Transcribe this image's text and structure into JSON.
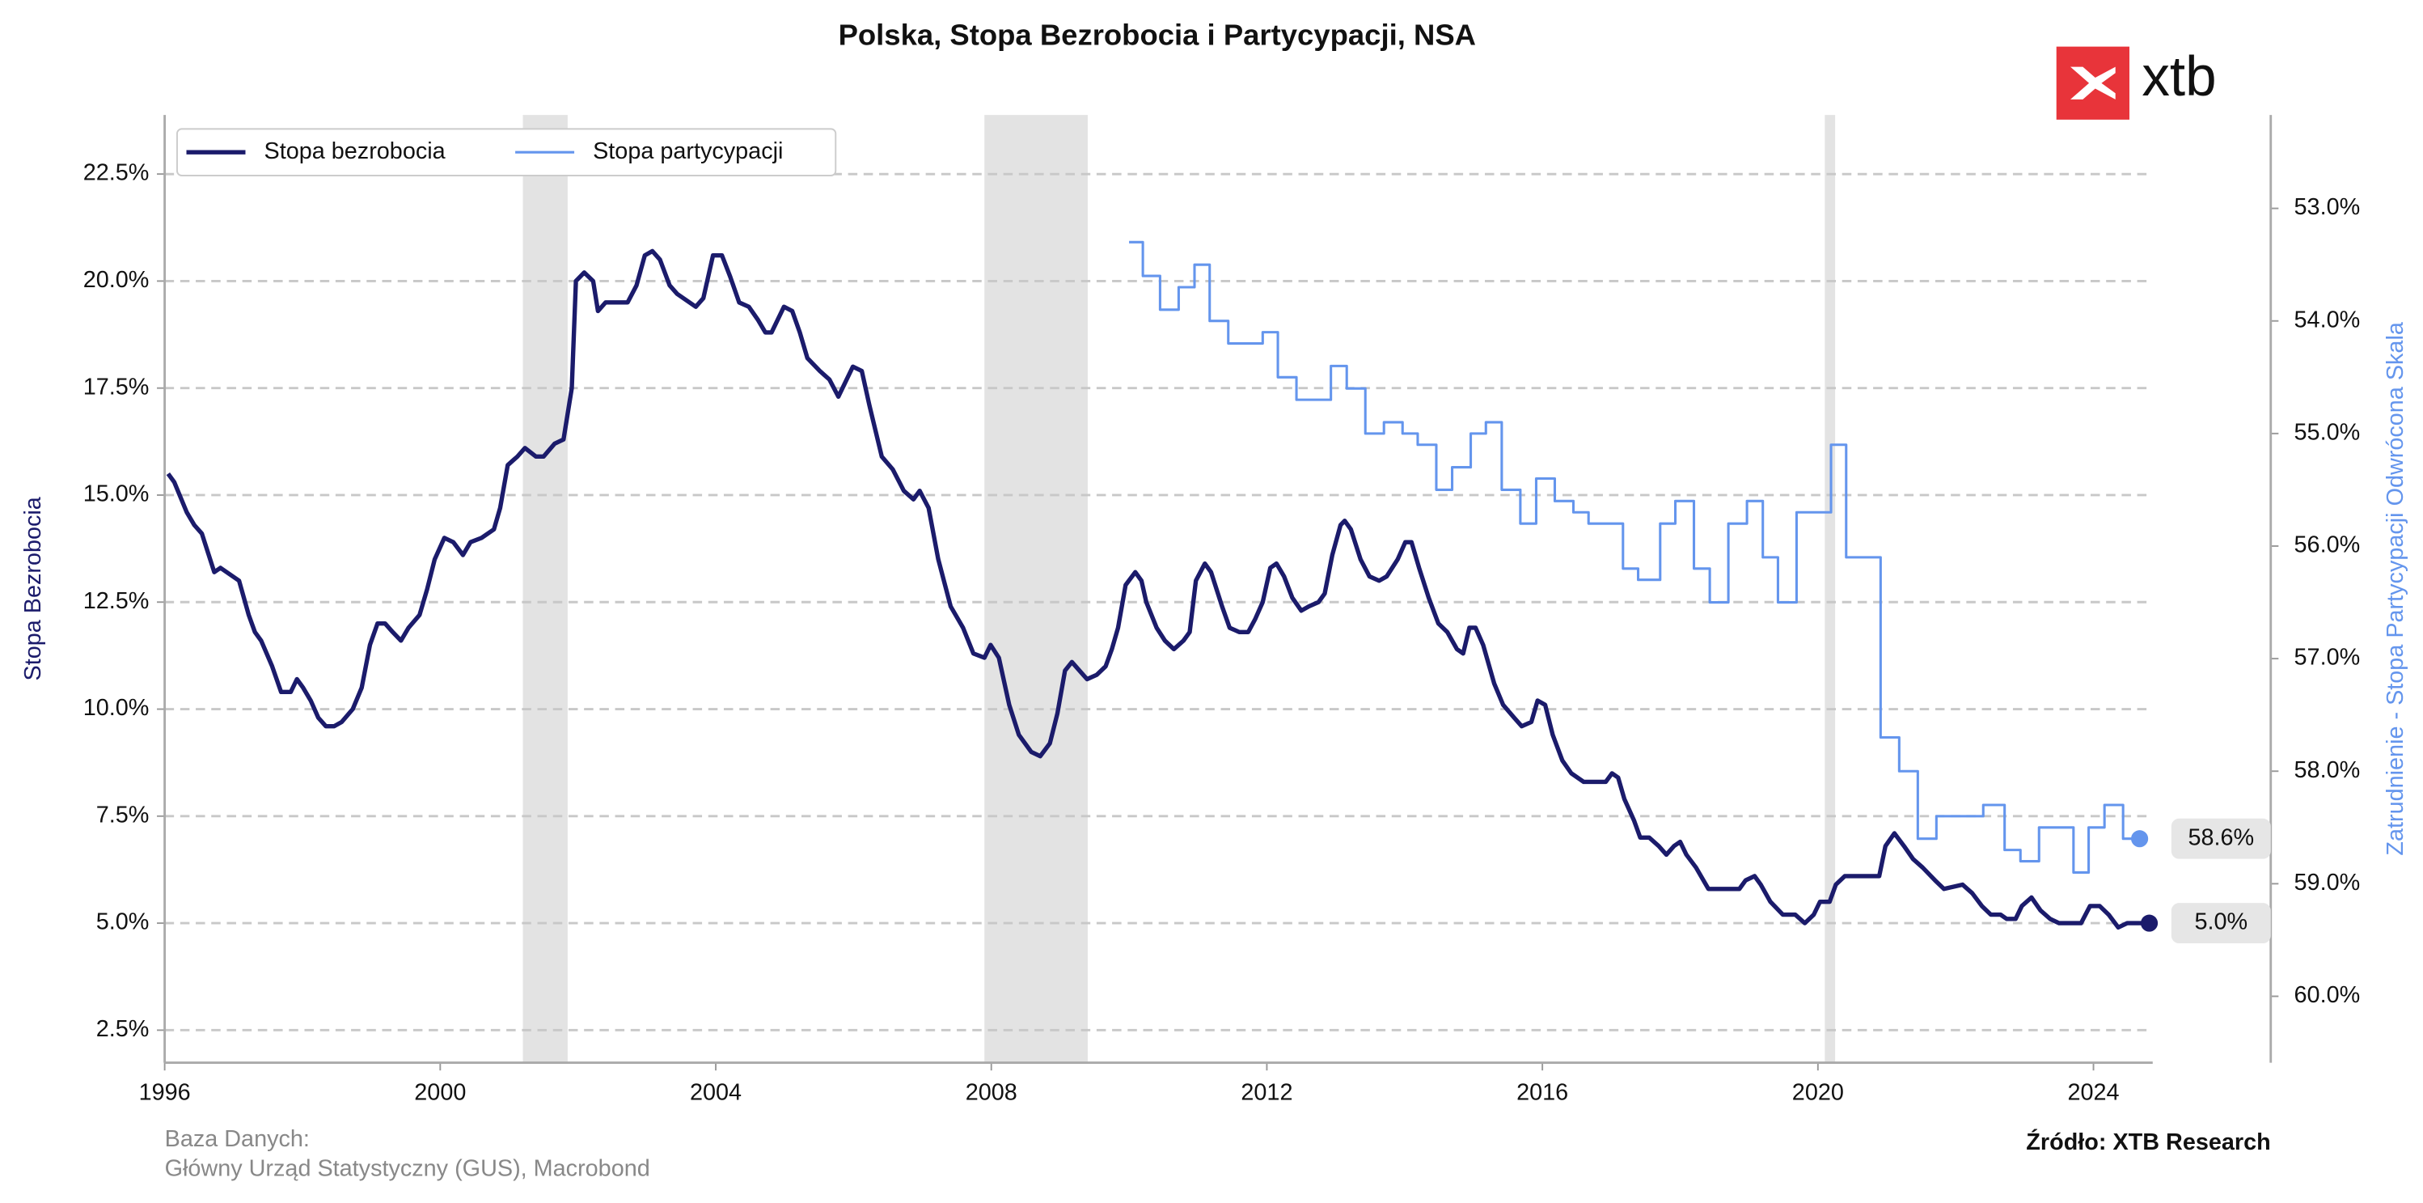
{
  "chart_data": {
    "type": "line",
    "title": "Polska, Stopa Bezrobocia i Partycypacji, NSA",
    "y_label": "Stopa Bezrobocia",
    "y2_label": "Zatrudnienie - Stopa Partycypacji Odwrócona Skala",
    "source_title": "Baza Danych:",
    "source_text": "Główny Urząd Statystyczny (GUS), Macrobond",
    "credit": "Źródło: XTB Research",
    "logo": "xtb",
    "legend": "upper left",
    "grid": true,
    "y2_inverted": true,
    "xlim": [
      1996,
      2024.86
    ],
    "xticks": [
      1996,
      2000,
      2004,
      2008,
      2012,
      2016,
      2020,
      2024
    ],
    "ylim": [
      1.74,
      23.88
    ],
    "yticks": [
      {
        "value": 2.5,
        "label": "2.5%"
      },
      {
        "value": 5,
        "label": "5.0%"
      },
      {
        "value": 7.5,
        "label": "7.5%"
      },
      {
        "value": 10,
        "label": "10.0%"
      },
      {
        "value": 12.5,
        "label": "12.5%"
      },
      {
        "value": 15,
        "label": "15.0%"
      },
      {
        "value": 17.5,
        "label": "17.5%"
      },
      {
        "value": 20,
        "label": "20.0%"
      },
      {
        "value": 22.5,
        "label": "22.5%"
      }
    ],
    "y2lim": [
      52.17,
      60.59
    ],
    "y2ticks": [
      {
        "value": 53,
        "label": "53.0%"
      },
      {
        "value": 54,
        "label": "54.0%"
      },
      {
        "value": 55,
        "label": "55.0%"
      },
      {
        "value": 56,
        "label": "56.0%"
      },
      {
        "value": 57,
        "label": "57.0%"
      },
      {
        "value": 58,
        "label": "58.0%"
      },
      {
        "value": 59,
        "label": "59.0%"
      },
      {
        "value": 60,
        "label": "60.0%"
      }
    ],
    "shaded_periods": [
      [
        2001.2,
        2001.85
      ],
      [
        2007.9,
        2009.4
      ],
      [
        2020.1,
        2020.25
      ]
    ],
    "series": [
      {
        "name": "Stopa bezrobocia",
        "color": "#1b1b6b",
        "end_label": "5.0%",
        "x": [
          1996.05,
          1996.14,
          1996.32,
          1996.43,
          1996.54,
          1996.72,
          1996.81,
          1997.08,
          1997.22,
          1997.31,
          1997.4,
          1997.56,
          1997.69,
          1997.83,
          1997.92,
          1998.01,
          1998.12,
          1998.23,
          1998.34,
          1998.46,
          1998.57,
          1998.73,
          1998.86,
          1998.98,
          1999.09,
          1999.2,
          1999.31,
          1999.43,
          1999.54,
          1999.7,
          1999.81,
          1999.92,
          2000.06,
          2000.19,
          2000.33,
          2000.44,
          2000.6,
          2000.78,
          2000.87,
          2000.98,
          2001.12,
          2001.23,
          2001.39,
          2001.5,
          2001.66,
          2001.79,
          2001.91,
          2001.97,
          2002.09,
          2002.22,
          2002.29,
          2002.4,
          2002.56,
          2002.72,
          2002.85,
          2002.97,
          2003.08,
          2003.19,
          2003.33,
          2003.44,
          2003.71,
          2003.82,
          2003.96,
          2004.09,
          2004.21,
          2004.34,
          2004.48,
          2004.61,
          2004.72,
          2004.81,
          2004.99,
          2005.11,
          2005.22,
          2005.33,
          2005.51,
          2005.65,
          2005.78,
          2005.87,
          2005.99,
          2006.12,
          2006.23,
          2006.41,
          2006.57,
          2006.73,
          2006.87,
          2006.96,
          2007.09,
          2007.23,
          2007.41,
          2007.59,
          2007.74,
          2007.9,
          2007.99,
          2008.11,
          2008.26,
          2008.4,
          2008.58,
          2008.71,
          2008.85,
          2008.96,
          2009.07,
          2009.17,
          2009.28,
          2009.39,
          2009.53,
          2009.66,
          2009.75,
          2009.84,
          2009.95,
          2010.09,
          2010.18,
          2010.25,
          2010.4,
          2010.52,
          2010.65,
          2010.79,
          2010.88,
          2010.97,
          2011.1,
          2011.19,
          2011.35,
          2011.46,
          2011.6,
          2011.73,
          2011.83,
          2011.94,
          2012.05,
          2012.14,
          2012.25,
          2012.37,
          2012.5,
          2012.61,
          2012.75,
          2012.84,
          2012.95,
          2013.07,
          2013.13,
          2013.22,
          2013.36,
          2013.49,
          2013.63,
          2013.74,
          2013.9,
          2014.01,
          2014.1,
          2014.21,
          2014.35,
          2014.49,
          2014.62,
          2014.76,
          2014.85,
          2014.94,
          2015.03,
          2015.14,
          2015.3,
          2015.43,
          2015.59,
          2015.7,
          2015.84,
          2015.93,
          2016.04,
          2016.15,
          2016.29,
          2016.42,
          2016.6,
          2016.92,
          2017.01,
          2017.1,
          2017.19,
          2017.33,
          2017.42,
          2017.55,
          2017.69,
          2017.8,
          2017.91,
          2018.0,
          2018.09,
          2018.23,
          2018.41,
          2018.59,
          2018.72,
          2018.86,
          2018.95,
          2019.08,
          2019.17,
          2019.31,
          2019.49,
          2019.67,
          2019.81,
          2019.94,
          2020.03,
          2020.17,
          2020.26,
          2020.39,
          2020.89,
          2020.98,
          2021.11,
          2021.25,
          2021.38,
          2021.52,
          2021.7,
          2021.83,
          2022.1,
          2022.24,
          2022.38,
          2022.51,
          2022.65,
          2022.74,
          2022.87,
          2022.96,
          2023.1,
          2023.23,
          2023.37,
          2023.5,
          2023.82,
          2023.95,
          2024.09,
          2024.22,
          2024.36,
          2024.49,
          2024.81
        ],
        "values": [
          15.5,
          15.3,
          14.6,
          14.3,
          14.1,
          13.2,
          13.3,
          13.0,
          12.2,
          11.8,
          11.6,
          11.0,
          10.4,
          10.4,
          10.7,
          10.5,
          10.2,
          9.8,
          9.6,
          9.6,
          9.7,
          10.0,
          10.5,
          11.5,
          12.0,
          12.0,
          11.8,
          11.6,
          11.9,
          12.2,
          12.8,
          13.5,
          14.0,
          13.9,
          13.6,
          13.9,
          14.0,
          14.2,
          14.7,
          15.7,
          15.9,
          16.1,
          15.9,
          15.9,
          16.2,
          16.3,
          17.5,
          20.0,
          20.2,
          20.0,
          19.3,
          19.5,
          19.5,
          19.5,
          19.9,
          20.6,
          20.7,
          20.5,
          19.9,
          19.7,
          19.4,
          19.6,
          20.6,
          20.6,
          20.1,
          19.5,
          19.4,
          19.1,
          18.8,
          18.8,
          19.4,
          19.3,
          18.8,
          18.2,
          17.9,
          17.7,
          17.3,
          17.6,
          18.0,
          17.9,
          17.1,
          15.9,
          15.6,
          15.1,
          14.9,
          15.1,
          14.7,
          13.5,
          12.4,
          11.9,
          11.3,
          11.2,
          11.5,
          11.2,
          10.1,
          9.4,
          9.0,
          8.9,
          9.2,
          9.9,
          10.9,
          11.1,
          10.9,
          10.7,
          10.8,
          11.0,
          11.4,
          11.9,
          12.9,
          13.2,
          13.0,
          12.5,
          11.9,
          11.6,
          11.4,
          11.6,
          11.8,
          13.0,
          13.4,
          13.2,
          12.4,
          11.9,
          11.8,
          11.8,
          12.1,
          12.5,
          13.3,
          13.4,
          13.1,
          12.6,
          12.3,
          12.4,
          12.5,
          12.7,
          13.6,
          14.3,
          14.4,
          14.2,
          13.5,
          13.1,
          13.0,
          13.1,
          13.5,
          13.9,
          13.9,
          13.3,
          12.6,
          12.0,
          11.8,
          11.4,
          11.3,
          11.9,
          11.9,
          11.5,
          10.6,
          10.1,
          9.8,
          9.6,
          9.7,
          10.2,
          10.1,
          9.4,
          8.8,
          8.5,
          8.3,
          8.3,
          8.5,
          8.4,
          7.9,
          7.4,
          7.0,
          7.0,
          6.8,
          6.6,
          6.8,
          6.9,
          6.6,
          6.3,
          5.8,
          5.8,
          5.8,
          5.8,
          6.0,
          6.1,
          5.9,
          5.5,
          5.2,
          5.2,
          5.0,
          5.2,
          5.5,
          5.5,
          5.9,
          6.1,
          6.1,
          6.8,
          7.1,
          6.8,
          6.5,
          6.3,
          6.0,
          5.8,
          5.9,
          5.7,
          5.4,
          5.2,
          5.2,
          5.1,
          5.1,
          5.4,
          5.6,
          5.3,
          5.1,
          5.0,
          5.0,
          5.4,
          5.4,
          5.2,
          4.9,
          5.0,
          5.0
        ]
      },
      {
        "name": "Stopa partycypacji",
        "color": "#6495ed",
        "axis": "y2",
        "step": true,
        "end_label": "58.6%",
        "x": [
          2010.0,
          2010.2,
          2010.45,
          2010.72,
          2010.95,
          2011.17,
          2011.44,
          2011.94,
          2012.16,
          2012.43,
          2012.93,
          2013.16,
          2013.43,
          2013.7,
          2013.97,
          2014.19,
          2014.46,
          2014.69,
          2014.96,
          2015.18,
          2015.41,
          2015.68,
          2015.91,
          2016.18,
          2016.45,
          2016.67,
          2017.17,
          2017.39,
          2017.71,
          2017.93,
          2018.2,
          2018.43,
          2018.7,
          2018.97,
          2019.2,
          2019.42,
          2019.69,
          2020.19,
          2020.41,
          2020.91,
          2021.18,
          2021.45,
          2021.72,
          2022.4,
          2022.71,
          2022.94,
          2023.21,
          2023.71,
          2023.93,
          2024.16,
          2024.43,
          2024.67
        ],
        "values": [
          53.3,
          53.6,
          53.9,
          53.7,
          53.5,
          54.0,
          54.2,
          54.1,
          54.5,
          54.7,
          54.4,
          54.6,
          55.0,
          54.9,
          55.0,
          55.1,
          55.5,
          55.3,
          55.0,
          54.9,
          55.5,
          55.8,
          55.4,
          55.6,
          55.7,
          55.8,
          56.2,
          56.3,
          55.8,
          55.6,
          56.2,
          56.5,
          55.8,
          55.6,
          56.1,
          56.5,
          55.7,
          55.1,
          56.1,
          57.7,
          58.0,
          58.6,
          58.4,
          58.3,
          58.7,
          58.8,
          58.5,
          58.9,
          58.5,
          58.3,
          58.6,
          58.6
        ]
      }
    ]
  }
}
